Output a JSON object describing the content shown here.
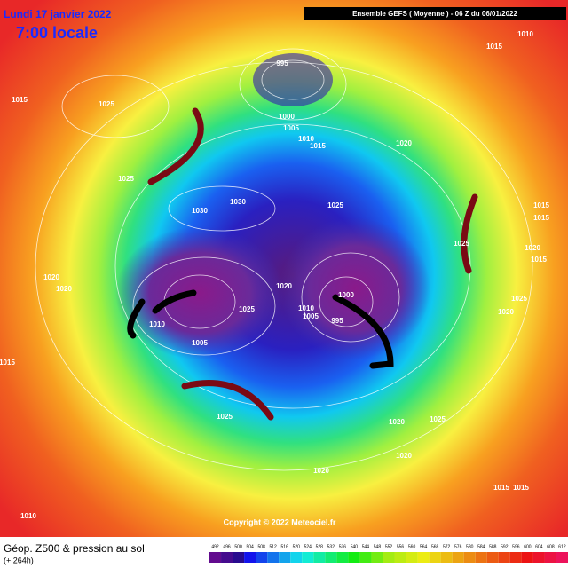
{
  "header": {
    "date": "Lundi 17 janvier 2022",
    "time": "7:00 locale",
    "model": "Ensemble GEFS  ( Moyenne )  -  06 Z du 06/01/2022"
  },
  "map": {
    "pressure_labels": [
      "995",
      "1010",
      "1015",
      "1015",
      "1025",
      "1000",
      "1005",
      "1010",
      "1015",
      "1020",
      "1025",
      "1030",
      "1030",
      "1025",
      "1015",
      "1015",
      "1025",
      "1020",
      "1015",
      "1020",
      "1020",
      "1020",
      "1000",
      "1025",
      "1010",
      "1005",
      "995",
      "1025",
      "1020",
      "1010",
      "1005",
      "1015",
      "1025",
      "1025",
      "1020",
      "1020",
      "1020",
      "1015",
      "1015",
      "1010"
    ]
  },
  "footer": {
    "title": "Géop. Z500 & pression au sol",
    "lead": "(+ 264h)",
    "copyright": "Copyright © 2022 Meteociel.fr"
  },
  "legend": {
    "levels": [
      492,
      496,
      500,
      504,
      508,
      512,
      516,
      520,
      524,
      528,
      532,
      536,
      540,
      544,
      548,
      552,
      556,
      560,
      564,
      568,
      572,
      576,
      580,
      584,
      588,
      592,
      596,
      600,
      604,
      608,
      612
    ]
  }
}
